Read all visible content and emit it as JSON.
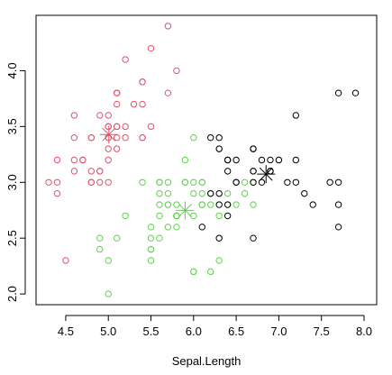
{
  "chart_data": {
    "type": "scatter",
    "xlabel": "Sepal.Length",
    "ylabel": "",
    "xlim": [
      4.3,
      8.0
    ],
    "ylim": [
      2.0,
      4.4
    ],
    "x_ticks": [
      "4.5",
      "5.0",
      "5.5",
      "6.0",
      "6.5",
      "7.0",
      "7.5",
      "8.0"
    ],
    "y_ticks": [
      "2.0",
      "2.5",
      "3.0",
      "3.5",
      "4.0"
    ],
    "grid": false,
    "series": [
      {
        "color": "#DF536B",
        "marker": "open-circle",
        "points": [
          [
            5.1,
            3.5
          ],
          [
            4.9,
            3.0
          ],
          [
            4.7,
            3.2
          ],
          [
            4.6,
            3.1
          ],
          [
            5.0,
            3.6
          ],
          [
            5.4,
            3.9
          ],
          [
            4.6,
            3.4
          ],
          [
            5.0,
            3.4
          ],
          [
            4.4,
            2.9
          ],
          [
            4.9,
            3.1
          ],
          [
            5.4,
            3.7
          ],
          [
            4.8,
            3.4
          ],
          [
            4.8,
            3.0
          ],
          [
            4.3,
            3.0
          ],
          [
            5.8,
            4.0
          ],
          [
            5.7,
            4.4
          ],
          [
            5.4,
            3.9
          ],
          [
            5.1,
            3.5
          ],
          [
            5.7,
            3.8
          ],
          [
            5.1,
            3.8
          ],
          [
            5.4,
            3.4
          ],
          [
            5.1,
            3.7
          ],
          [
            4.6,
            3.6
          ],
          [
            5.1,
            3.3
          ],
          [
            4.8,
            3.4
          ],
          [
            5.0,
            3.0
          ],
          [
            5.0,
            3.4
          ],
          [
            5.2,
            3.5
          ],
          [
            5.2,
            3.4
          ],
          [
            4.7,
            3.2
          ],
          [
            4.8,
            3.1
          ],
          [
            5.4,
            3.4
          ],
          [
            5.2,
            4.1
          ],
          [
            5.5,
            4.2
          ],
          [
            4.9,
            3.1
          ],
          [
            5.0,
            3.2
          ],
          [
            5.5,
            3.5
          ],
          [
            4.9,
            3.6
          ],
          [
            4.4,
            3.0
          ],
          [
            5.1,
            3.4
          ],
          [
            5.0,
            3.5
          ],
          [
            4.5,
            2.3
          ],
          [
            4.4,
            3.2
          ],
          [
            5.0,
            3.5
          ],
          [
            5.1,
            3.8
          ],
          [
            4.8,
            3.0
          ],
          [
            5.1,
            3.8
          ],
          [
            4.6,
            3.2
          ],
          [
            5.3,
            3.7
          ],
          [
            5.0,
            3.3
          ]
        ]
      },
      {
        "color": "#61D04F",
        "marker": "open-circle",
        "points": [
          [
            5.5,
            2.3
          ],
          [
            5.7,
            2.8
          ],
          [
            6.3,
            3.3
          ],
          [
            4.9,
            2.4
          ],
          [
            6.6,
            2.9
          ],
          [
            5.2,
            2.7
          ],
          [
            5.0,
            2.0
          ],
          [
            5.9,
            3.0
          ],
          [
            6.0,
            2.2
          ],
          [
            6.1,
            2.9
          ],
          [
            5.6,
            2.9
          ],
          [
            6.7,
            3.1
          ],
          [
            5.6,
            3.0
          ],
          [
            5.8,
            2.7
          ],
          [
            6.2,
            2.2
          ],
          [
            5.6,
            2.5
          ],
          [
            5.9,
            3.2
          ],
          [
            6.1,
            2.8
          ],
          [
            6.3,
            2.5
          ],
          [
            6.1,
            2.8
          ],
          [
            6.4,
            2.9
          ],
          [
            6.6,
            3.0
          ],
          [
            6.0,
            2.9
          ],
          [
            5.7,
            2.6
          ],
          [
            5.5,
            2.4
          ],
          [
            5.5,
            2.4
          ],
          [
            5.8,
            2.7
          ],
          [
            6.0,
            2.7
          ],
          [
            5.4,
            3.0
          ],
          [
            6.0,
            3.4
          ],
          [
            6.7,
            3.1
          ],
          [
            6.3,
            2.3
          ],
          [
            5.6,
            3.0
          ],
          [
            5.5,
            2.5
          ],
          [
            5.5,
            2.6
          ],
          [
            6.1,
            3.0
          ],
          [
            5.8,
            2.6
          ],
          [
            5.0,
            2.3
          ],
          [
            5.6,
            2.7
          ],
          [
            5.7,
            3.0
          ],
          [
            5.7,
            2.9
          ],
          [
            6.2,
            2.9
          ],
          [
            5.1,
            2.5
          ],
          [
            5.7,
            2.8
          ],
          [
            4.9,
            2.5
          ],
          [
            6.7,
            3.0
          ],
          [
            6.0,
            2.2
          ],
          [
            5.6,
            2.8
          ],
          [
            6.3,
            2.7
          ],
          [
            6.2,
            2.8
          ],
          [
            6.1,
            3.0
          ],
          [
            6.4,
            2.8
          ],
          [
            6.0,
            3.0
          ],
          [
            5.8,
            2.8
          ],
          [
            5.8,
            2.7
          ],
          [
            6.7,
            2.8
          ],
          [
            7.0,
            3.2
          ],
          [
            5.9,
            3.0
          ],
          [
            6.5,
            2.8
          ],
          [
            5.8,
            2.7
          ]
        ]
      },
      {
        "color": "#000000",
        "marker": "open-circle",
        "points": [
          [
            6.3,
            3.3
          ],
          [
            7.1,
            3.0
          ],
          [
            6.5,
            3.0
          ],
          [
            7.6,
            3.0
          ],
          [
            7.3,
            2.9
          ],
          [
            6.7,
            2.5
          ],
          [
            7.2,
            3.6
          ],
          [
            6.5,
            3.2
          ],
          [
            6.4,
            2.7
          ],
          [
            6.8,
            3.0
          ],
          [
            6.4,
            3.2
          ],
          [
            7.7,
            3.8
          ],
          [
            7.7,
            2.6
          ],
          [
            6.9,
            3.2
          ],
          [
            7.7,
            2.8
          ],
          [
            6.7,
            3.3
          ],
          [
            7.2,
            3.2
          ],
          [
            6.4,
            2.8
          ],
          [
            7.2,
            3.0
          ],
          [
            7.4,
            2.8
          ],
          [
            7.9,
            3.8
          ],
          [
            6.3,
            2.8
          ],
          [
            6.1,
            2.6
          ],
          [
            7.7,
            3.0
          ],
          [
            6.3,
            3.4
          ],
          [
            6.4,
            3.1
          ],
          [
            6.9,
            3.1
          ],
          [
            6.7,
            3.1
          ],
          [
            6.9,
            3.1
          ],
          [
            6.8,
            3.2
          ],
          [
            6.7,
            3.3
          ],
          [
            6.7,
            3.0
          ],
          [
            6.5,
            3.0
          ],
          [
            6.2,
            3.4
          ],
          [
            6.9,
            3.1
          ],
          [
            6.3,
            2.9
          ],
          [
            6.2,
            2.9
          ],
          [
            6.4,
            3.2
          ],
          [
            6.3,
            2.5
          ],
          [
            7.0,
            3.2
          ]
        ]
      }
    ],
    "centers": [
      {
        "x": 5.006,
        "y": 3.428,
        "color": "#DF536B",
        "marker": "asterisk"
      },
      {
        "x": 5.9016,
        "y": 2.7484,
        "color": "#61D04F",
        "marker": "asterisk"
      },
      {
        "x": 6.85,
        "y": 3.0737,
        "color": "#000000",
        "marker": "asterisk"
      }
    ]
  }
}
